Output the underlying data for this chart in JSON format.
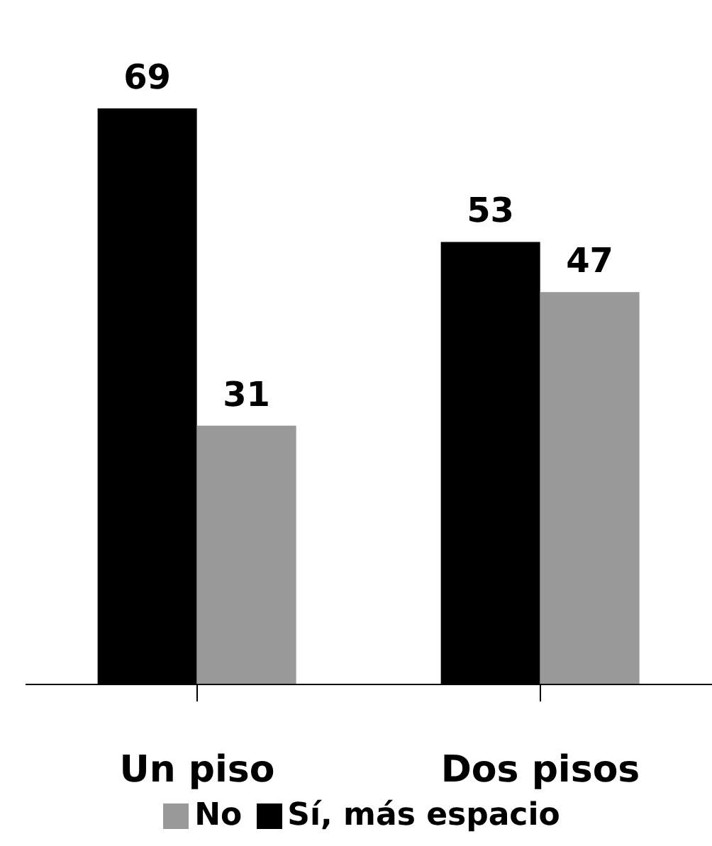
{
  "chart_data": {
    "type": "bar",
    "categories": [
      "Un piso",
      "Dos pisos"
    ],
    "series": [
      {
        "name": "Sí, más espacio",
        "color": "#000000",
        "values": [
          69,
          53
        ]
      },
      {
        "name": "No",
        "color": "#999999",
        "values": [
          31,
          47
        ]
      }
    ],
    "data_labels": true,
    "legend": "bottom",
    "grid": false
  }
}
